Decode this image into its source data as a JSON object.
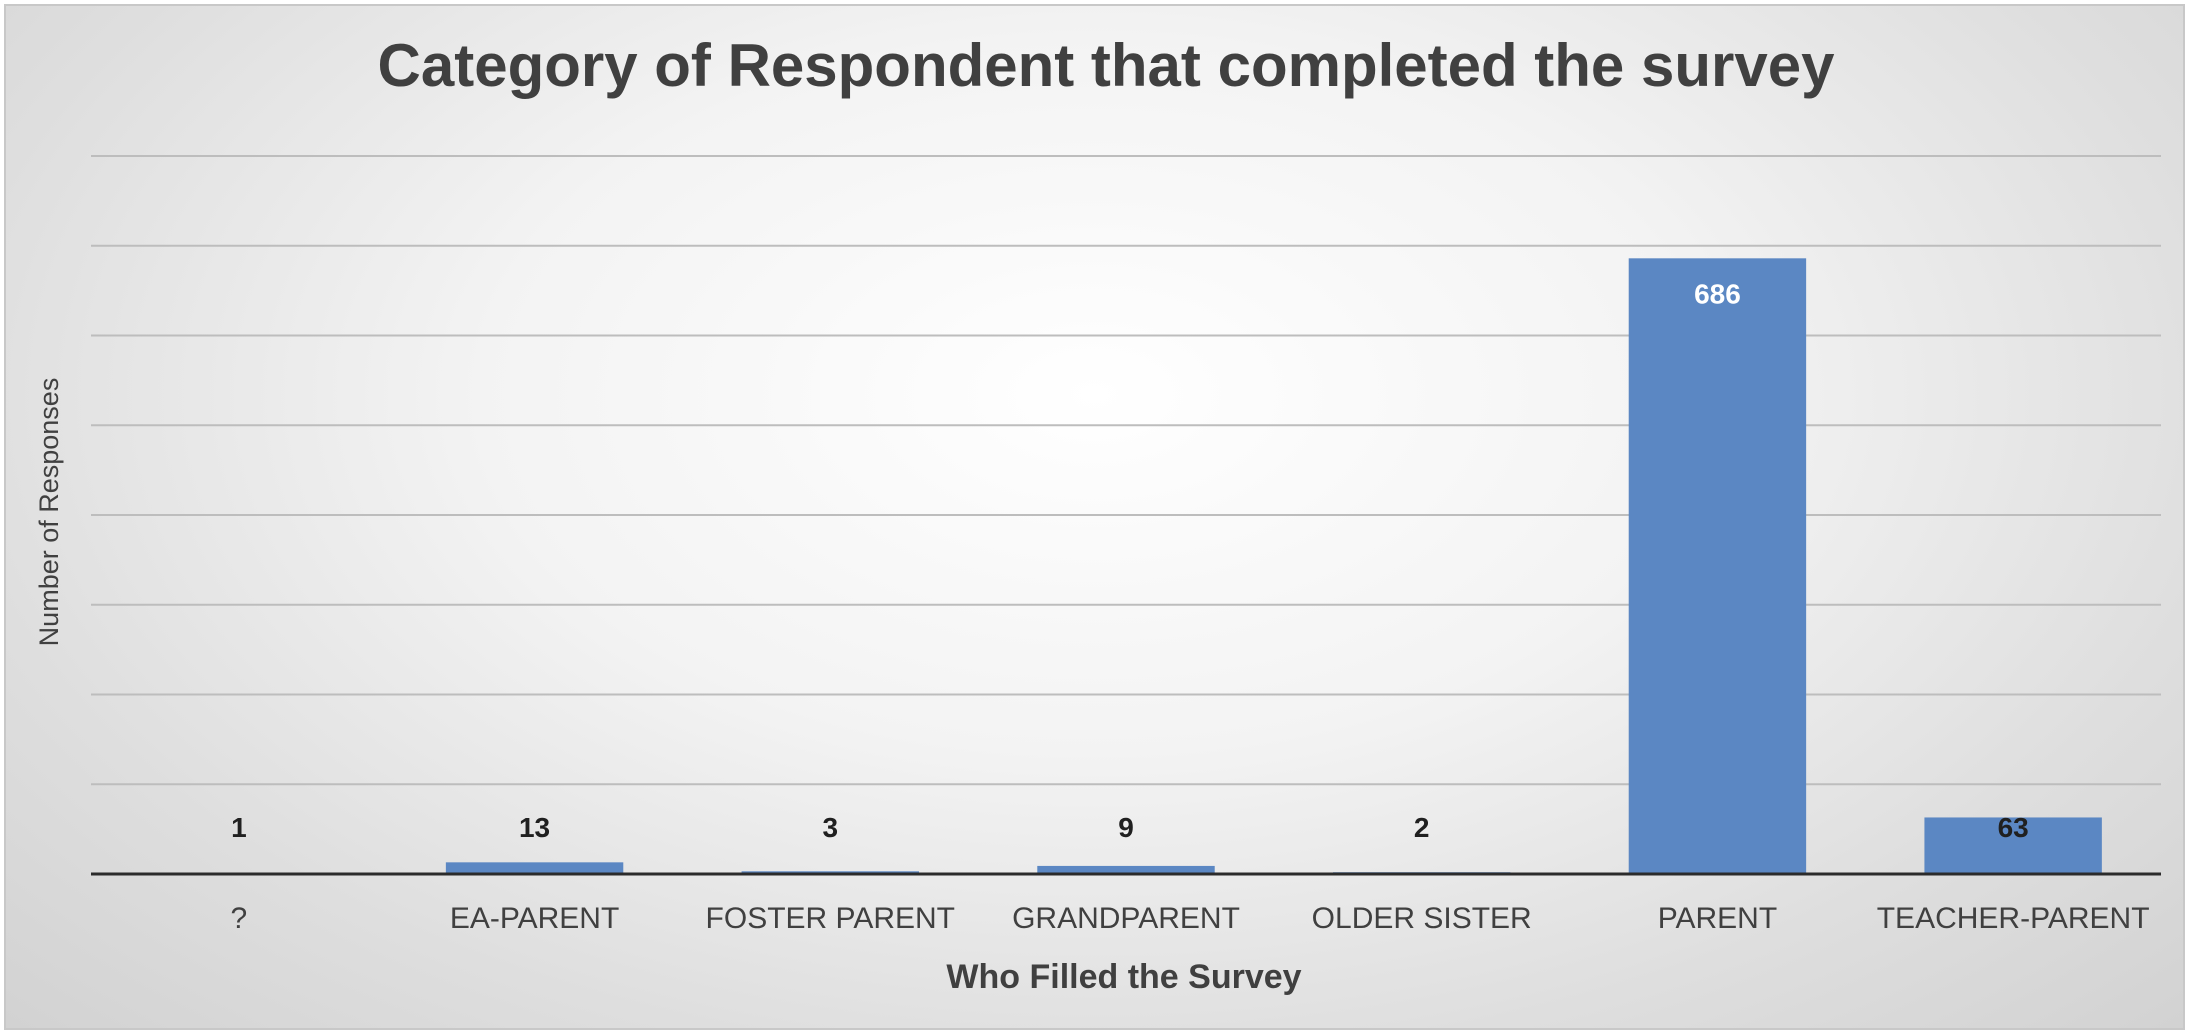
{
  "colors": {
    "bar": "#5b87c3",
    "text": "#404040",
    "gridline": "#bdbdbd"
  },
  "chart_data": {
    "type": "bar",
    "title": "Category of Respondent that completed the survey",
    "xlabel": "Who Filled the Survey",
    "ylabel": "Number of Responses",
    "categories": [
      "?",
      "EA-PARENT",
      "FOSTER PARENT",
      "GRANDPARENT",
      "OLDER SISTER",
      "PARENT",
      "TEACHER-PARENT"
    ],
    "values": [
      1,
      13,
      3,
      9,
      2,
      686,
      63
    ],
    "data_labels": [
      "1",
      "13",
      "3",
      "9",
      "2",
      "686",
      "63"
    ],
    "ylim": [
      0,
      800
    ],
    "gridline_step": 100,
    "grid": true,
    "y_tick_labels_visible": false,
    "legend": "none"
  }
}
